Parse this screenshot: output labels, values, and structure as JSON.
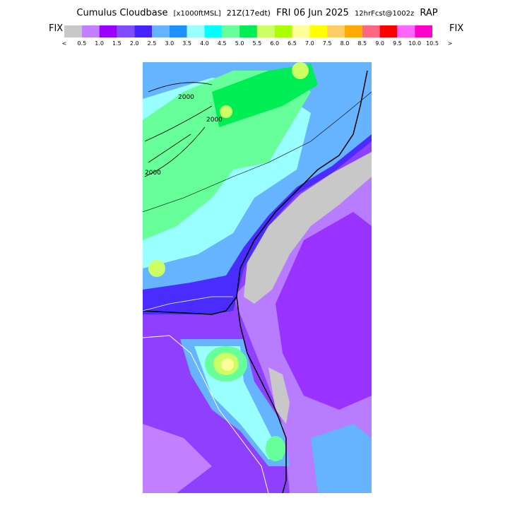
{
  "header": {
    "title": "Cumulus Cloudbase",
    "units": "[x1000ftMSL]",
    "time": "21Z(17edt)",
    "date": "FRI 06 Jun 2025",
    "forecast": "12hrFcst@1002z",
    "model": "RAP"
  },
  "colorbar": {
    "left_label": "FIX",
    "right_label": "FIX",
    "start": "<",
    "end": ">",
    "colors": [
      "#c8c8c8",
      "#c080ff",
      "#9900ff",
      "#7f4cff",
      "#4422ff",
      "#66b3ff",
      "#1e90ff",
      "#99ffff",
      "#00ffff",
      "#66ff99",
      "#00ee55",
      "#ccff66",
      "#aaff00",
      "#ffff99",
      "#ffff00",
      "#ffcc66",
      "#ffaa00",
      "#ff6680",
      "#ff0000",
      "#ff66ff",
      "#ff00cc"
    ],
    "ticks": [
      "0.5",
      "1.0",
      "1.5",
      "2.0",
      "2.5",
      "3.0",
      "3.5",
      "4.0",
      "4.5",
      "5.0",
      "5.5",
      "6.0",
      "6.5",
      "7.0",
      "7.5",
      "8.0",
      "8.5",
      "9.0",
      "9.5",
      "10.0",
      "10.5"
    ]
  },
  "map": {
    "contour_labels": [
      "2000",
      "2000",
      "2000"
    ]
  }
}
